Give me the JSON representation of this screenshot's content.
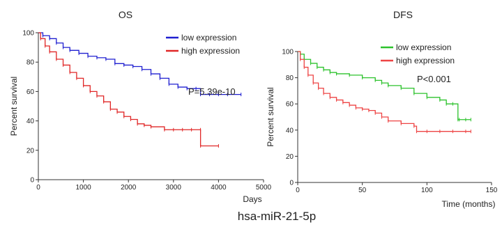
{
  "caption": "hsa-miR-21-5p",
  "chart_data": [
    {
      "type": "line",
      "title": "OS",
      "xlabel": "Days",
      "ylabel": "Percent survival",
      "xlim": [
        0,
        5000
      ],
      "ylim": [
        0,
        100
      ],
      "xticks": [
        "0",
        "1000",
        "2000",
        "3000",
        "4000",
        "5000"
      ],
      "yticks": [
        "0",
        "20",
        "40",
        "60",
        "80",
        "100"
      ],
      "pvalue": "P=5.39e-10",
      "legend_position": "top-right",
      "grid": false,
      "series": [
        {
          "name": "low expression",
          "color": "#1f1fd0",
          "x": [
            0,
            100,
            250,
            400,
            550,
            700,
            900,
            1100,
            1300,
            1500,
            1700,
            1900,
            2100,
            2300,
            2500,
            2700,
            2900,
            3100,
            3300,
            3500,
            3600,
            3800,
            4000,
            4200,
            4500
          ],
          "y": [
            100,
            98,
            96,
            93,
            90,
            88,
            86,
            84,
            83,
            82,
            79,
            78,
            77,
            75,
            72,
            69,
            65,
            63,
            62,
            62,
            58,
            58,
            58,
            58,
            58
          ]
        },
        {
          "name": "high expression",
          "color": "#e02626",
          "x": [
            0,
            50,
            150,
            250,
            400,
            550,
            700,
            850,
            1000,
            1150,
            1300,
            1450,
            1600,
            1750,
            1900,
            2050,
            2200,
            2350,
            2500,
            2800,
            3000,
            3200,
            3400,
            3600,
            3601,
            4000
          ],
          "y": [
            100,
            96,
            91,
            87,
            82,
            78,
            73,
            69,
            64,
            60,
            57,
            53,
            48,
            46,
            43,
            41,
            38,
            37,
            36,
            34,
            34,
            34,
            34,
            34,
            23,
            23
          ]
        }
      ]
    },
    {
      "type": "line",
      "title": "DFS",
      "xlabel": "Time (months)",
      "ylabel": "Percent survival",
      "xlim": [
        0,
        150
      ],
      "ylim": [
        0,
        100
      ],
      "xticks": [
        "0",
        "50",
        "100",
        "150"
      ],
      "yticks": [
        "0",
        "20",
        "40",
        "60",
        "80",
        "100"
      ],
      "pvalue": "P<0.001",
      "legend_position": "top-right",
      "grid": false,
      "series": [
        {
          "name": "low expression",
          "color": "#2cc22c",
          "x": [
            0,
            2,
            5,
            10,
            15,
            20,
            25,
            30,
            40,
            50,
            60,
            65,
            70,
            80,
            90,
            100,
            110,
            115,
            120,
            124,
            125,
            130,
            134
          ],
          "y": [
            100,
            98,
            94,
            91,
            88,
            86,
            84,
            83,
            82,
            80,
            78,
            76,
            74,
            72,
            68,
            65,
            63,
            60,
            60,
            48,
            48,
            48,
            48
          ]
        },
        {
          "name": "high expression",
          "color": "#ee4444",
          "x": [
            0,
            2,
            5,
            8,
            12,
            16,
            20,
            25,
            30,
            35,
            40,
            45,
            50,
            55,
            60,
            65,
            70,
            80,
            90,
            92,
            100,
            110,
            120,
            130,
            134
          ],
          "y": [
            100,
            94,
            88,
            82,
            76,
            72,
            68,
            65,
            63,
            61,
            59,
            57,
            56,
            55,
            53,
            50,
            47,
            45,
            43,
            39,
            39,
            39,
            39,
            39,
            39
          ]
        }
      ]
    }
  ]
}
